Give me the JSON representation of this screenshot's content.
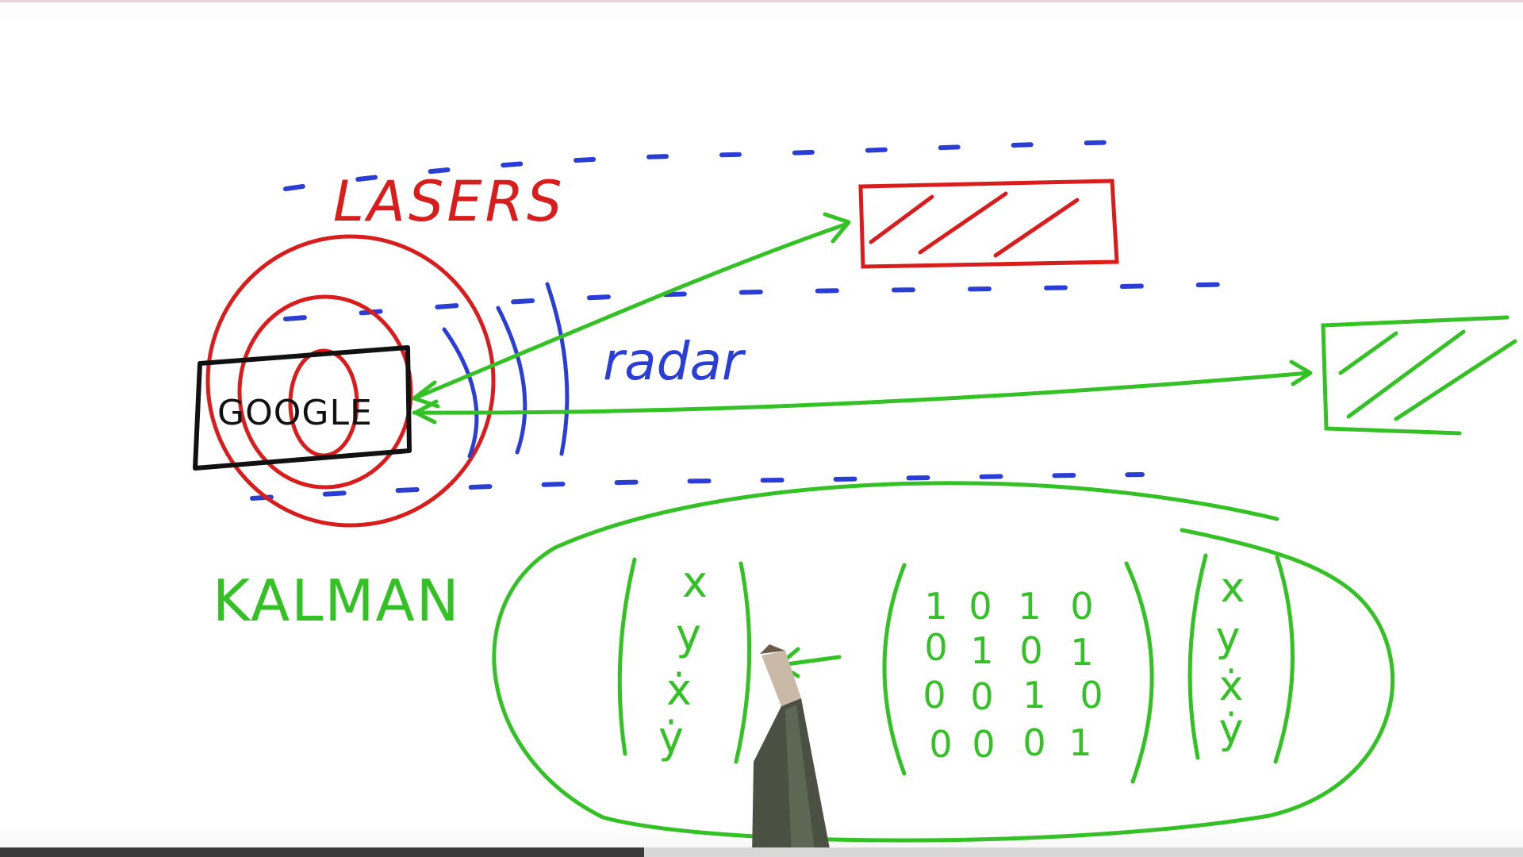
{
  "labels": {
    "lasers": "LASERS",
    "google": "GOOGLE",
    "radar": "radar",
    "kalman": "KALMAN"
  },
  "state_vector_left": [
    "x",
    "y",
    "ẋ",
    "ẏ"
  ],
  "transition_matrix": [
    [
      "1",
      "0",
      "1",
      "0"
    ],
    [
      "0",
      "1",
      "0",
      "1"
    ],
    [
      "0",
      "0",
      "1",
      "0"
    ],
    [
      "0",
      "0",
      "0",
      "1"
    ]
  ],
  "state_vector_right": [
    "x",
    "y",
    "ẋ",
    "ẏ"
  ],
  "colors": {
    "lasers": "#d91c1c",
    "radar": "#2a3ed6",
    "kalman": "#33c125",
    "car": "#111111"
  }
}
